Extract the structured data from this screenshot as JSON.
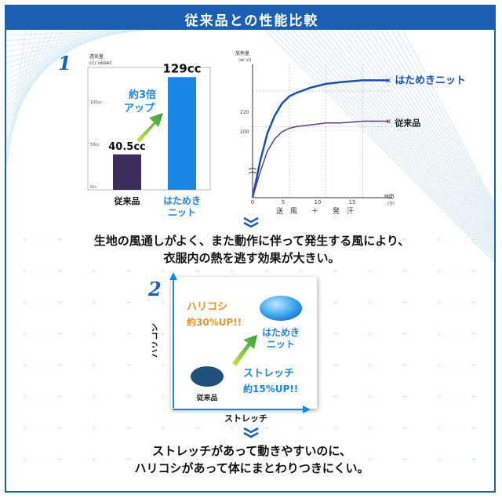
{
  "title": "従来品との性能比較",
  "section1": {
    "badge": "1",
    "bar_chart": {
      "unit_label_1": "透気量",
      "unit_label_2": "cc/ ㎠/sec",
      "tick_100": "100cc",
      "tick_50": "50cc",
      "tick_0": "0cc",
      "value_label_a": "40.5cc",
      "value_label_b": "129cc",
      "callout_1": "約3倍",
      "callout_2": "アップ",
      "category_a": "従来品",
      "category_b_1": "はためき",
      "category_b_2": "ニット",
      "color_a": "#3d2b5e",
      "color_b": "#1a86e6"
    },
    "line_chart": {
      "ylabel_1": "放熱量",
      "ylabel_2": "(w/ ㎡)",
      "xlabel_1": "時間",
      "xlabel_2": "(分)",
      "x_caption": "送　風　　＋　　発　汗",
      "tick_x_0": "0",
      "tick_x_5": "5",
      "tick_x_10": "10",
      "tick_x_15": "15",
      "tick_y_200": "200",
      "tick_y_220": "220",
      "series_a_label": "はためきニット",
      "series_b_label": "従来品",
      "color_a": "#1a4fb0",
      "color_b": "#5a3d82"
    },
    "description_1": "生地の風通しがよく、また動作に伴って発生する風により、",
    "description_2": "衣服内の熱を逃す効果が大きい。"
  },
  "section2": {
    "badge": "2",
    "y_axis_label": "ハリコシ",
    "x_axis_label": "ストレッチ",
    "callout_hari_1": "ハリコシ",
    "callout_hari_2": "約30%UP!!",
    "callout_stretch_1": "ストレッチ",
    "callout_stretch_2": "約15%UP!!",
    "point_new_1": "はためき",
    "point_new_2": "ニット",
    "point_old": "従来品",
    "color_hari": "#e8962a",
    "color_stretch": "#1a86e6",
    "description_1": "ストレッチがあって動きやすいのに、",
    "description_2": "ハリコシがあって体にまとわりつきにくい。"
  },
  "chart_data": [
    {
      "type": "bar",
      "categories": [
        "従来品",
        "はためきニット"
      ],
      "values": [
        40.5,
        129
      ],
      "ylabel": "透気量",
      "ylim": [
        0,
        140
      ],
      "data_labels": [
        "40.5cc",
        "129cc"
      ],
      "annotation": "約3倍アップ",
      "grid": false
    },
    {
      "type": "line",
      "ylabel": "放熱量 (w/㎡)",
      "xlabel": "時間 (分)",
      "x_caption": "送風＋発汗",
      "xlim": [
        0,
        19
      ],
      "ylim": [
        160,
        235
      ],
      "y_break": true,
      "grid": true,
      "series": [
        {
          "name": "はためきニット",
          "x": [
            0,
            1,
            2,
            3,
            4,
            5,
            6,
            8,
            10,
            12,
            15,
            18.5
          ],
          "y": [
            160,
            180,
            196,
            206,
            213,
            217,
            219,
            222,
            224,
            225,
            226,
            226
          ]
        },
        {
          "name": "従来品",
          "x": [
            0,
            1,
            2,
            3,
            4,
            5,
            6,
            8,
            10,
            12,
            15,
            18.5
          ],
          "y": [
            160,
            174,
            186,
            193,
            197,
            199,
            200,
            201,
            202,
            202,
            203,
            203
          ]
        }
      ]
    },
    {
      "type": "scatter",
      "xlabel": "ストレッチ",
      "ylabel": "ハリコシ",
      "points": [
        {
          "name": "従来品",
          "x": 1,
          "y": 1
        },
        {
          "name": "はためきニット",
          "x": 1.15,
          "y": 1.3
        }
      ],
      "annotations": [
        "ハリコシ約30%UP!!",
        "ストレッチ約15%UP!!"
      ]
    }
  ]
}
